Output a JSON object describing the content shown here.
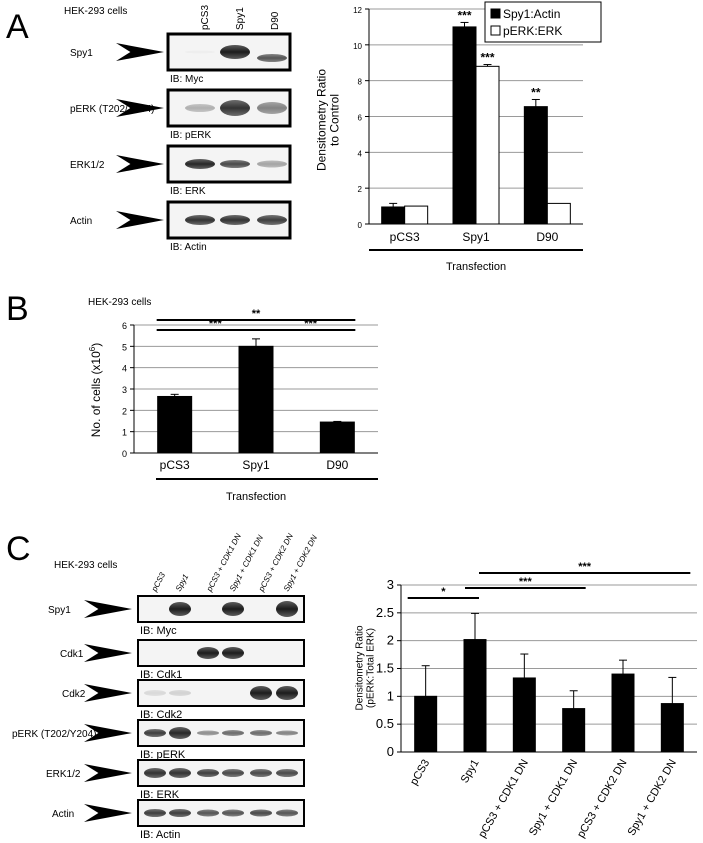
{
  "panelA": {
    "letter": "A",
    "cell_line": "HEK-293 cells",
    "lanes": [
      "pCS3",
      "Spy1",
      "D90"
    ],
    "blots": [
      {
        "label": "Spy1",
        "ib": "IB: Myc"
      },
      {
        "label": "pERK (T202/Y204)",
        "ib": "IB: pERK"
      },
      {
        "label": "ERK1/2",
        "ib": "IB: ERK"
      },
      {
        "label": "Actin",
        "ib": "IB: Actin"
      }
    ]
  },
  "panelB": {
    "letter": "B",
    "cell_line": "HEK-293 cells"
  },
  "panelC": {
    "letter": "C",
    "cell_line": "HEK-293 cells",
    "lanes": [
      "pCS3",
      "Spy1",
      "pCS3 + CDK1 DN",
      "Spy1 + CDK1 DN",
      "pCS3 + CDK2 DN",
      "Spy1 + CDK2 DN"
    ],
    "blots": [
      {
        "label": "Spy1",
        "ib": "IB: Myc"
      },
      {
        "label": "Cdk1",
        "ib": "IB: Cdk1"
      },
      {
        "label": "Cdk2",
        "ib": "IB: Cdk2"
      },
      {
        "label": "pERK (T202/Y204)",
        "ib": "IB: pERK"
      },
      {
        "label": "ERK1/2",
        "ib": "IB: ERK"
      },
      {
        "label": "Actin",
        "ib": "IB: Actin"
      }
    ]
  },
  "chart_data": [
    {
      "type": "bar",
      "panel": "A",
      "categories": [
        "pCS3",
        "Spy1",
        "D90"
      ],
      "series": [
        {
          "name": "Spy1:Actin",
          "values": [
            0.95,
            11.0,
            6.55
          ],
          "errors": [
            0.2,
            0.25,
            0.4
          ],
          "color": "#000000"
        },
        {
          "name": "pERK:ERK",
          "values": [
            1.0,
            8.8,
            1.15
          ],
          "errors": [
            0.0,
            0.1,
            0.0
          ],
          "color": "#ffffff"
        }
      ],
      "significance": [
        {
          "category": "Spy1",
          "series": 0,
          "label": "***"
        },
        {
          "category": "Spy1",
          "series": 1,
          "label": "***"
        },
        {
          "category": "D90",
          "series": 0,
          "label": "**"
        }
      ],
      "ylabel": "Densitometry Ratio\nto Control",
      "xlabel": "Transfection",
      "ylim": [
        0,
        12
      ],
      "yticks": [
        0,
        2,
        4,
        6,
        8,
        10,
        12
      ],
      "legend": "top-right",
      "grid": true
    },
    {
      "type": "bar",
      "panel": "B",
      "categories": [
        "pCS3",
        "Spy1",
        "D90"
      ],
      "values": [
        2.65,
        5.0,
        1.45
      ],
      "errors": [
        0.1,
        0.35,
        0.03
      ],
      "ylabel": "No. of cells (x10^6)",
      "ylabel_base": "No. of cells (x10",
      "ylabel_sup": "6",
      "ylabel_end": ")",
      "xlabel": "Transfection",
      "ylim": [
        0,
        6
      ],
      "yticks": [
        0,
        1,
        2,
        3,
        4,
        5,
        6
      ],
      "grid": true,
      "brackets": [
        {
          "from": "pCS3",
          "to": "Spy1",
          "label": "***"
        },
        {
          "from": "pCS3",
          "to": "D90",
          "label": "**"
        },
        {
          "from": "Spy1",
          "to": "D90",
          "label": "***"
        }
      ]
    },
    {
      "type": "bar",
      "panel": "C",
      "categories": [
        "pCS3",
        "Spy1",
        "pCS3 + CDK1 DN",
        "Spy1 + CDK1 DN",
        "pCS3 + CDK2 DN",
        "Spy1 + CDK2 DN"
      ],
      "values": [
        1.0,
        2.02,
        1.33,
        0.78,
        1.4,
        0.87
      ],
      "errors": [
        0.55,
        0.47,
        0.43,
        0.32,
        0.25,
        0.47
      ],
      "ylabel": "Densitometry Ratio\n(pERK:Total ERK)",
      "ylim": [
        0,
        3
      ],
      "yticks": [
        0,
        0.5,
        1,
        1.5,
        2,
        2.5,
        3
      ],
      "grid": true,
      "brackets": [
        {
          "from": "pCS3",
          "to": "Spy1",
          "label": "*"
        },
        {
          "from": "Spy1",
          "to": "Spy1 + CDK1 DN",
          "label": "***"
        },
        {
          "from": "Spy1",
          "to": "Spy1 + CDK2 DN",
          "label": "***"
        }
      ]
    }
  ]
}
